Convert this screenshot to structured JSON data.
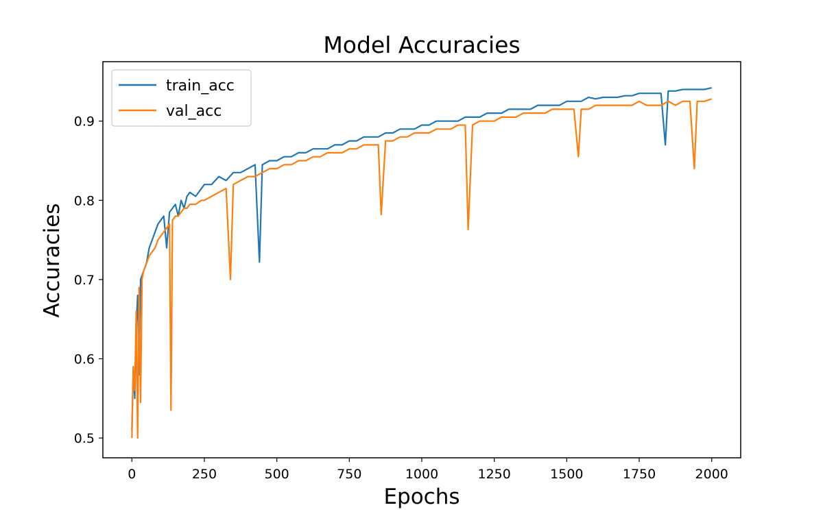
{
  "chart_data": {
    "type": "line",
    "title": "Model Accuracies",
    "xlabel": "Epochs",
    "ylabel": "Accuracies",
    "xlim": [
      -100,
      2100
    ],
    "ylim": [
      0.475,
      0.975
    ],
    "xticks": [
      0,
      250,
      500,
      750,
      1000,
      1250,
      1500,
      1750,
      2000
    ],
    "yticks": [
      0.5,
      0.6,
      0.7,
      0.8,
      0.9
    ],
    "grid": false,
    "legend": "upper-left",
    "series": [
      {
        "name": "train_acc",
        "color": "#1f77b4",
        "x": [
          0,
          5,
          10,
          15,
          20,
          25,
          30,
          40,
          50,
          60,
          70,
          80,
          90,
          100,
          110,
          120,
          130,
          140,
          150,
          160,
          170,
          180,
          190,
          200,
          220,
          240,
          250,
          275,
          300,
          325,
          350,
          375,
          400,
          425,
          440,
          450,
          475,
          500,
          525,
          550,
          575,
          600,
          625,
          650,
          675,
          700,
          725,
          750,
          775,
          800,
          825,
          850,
          875,
          900,
          925,
          950,
          975,
          1000,
          1025,
          1050,
          1075,
          1100,
          1125,
          1150,
          1175,
          1200,
          1225,
          1250,
          1275,
          1300,
          1325,
          1350,
          1375,
          1400,
          1425,
          1450,
          1475,
          1500,
          1525,
          1550,
          1575,
          1600,
          1625,
          1650,
          1675,
          1700,
          1725,
          1750,
          1775,
          1800,
          1825,
          1840,
          1850,
          1875,
          1900,
          1925,
          1950,
          1975,
          2000
        ],
        "values": [
          0.51,
          0.59,
          0.55,
          0.64,
          0.68,
          0.58,
          0.7,
          0.71,
          0.72,
          0.74,
          0.75,
          0.76,
          0.77,
          0.775,
          0.78,
          0.74,
          0.785,
          0.79,
          0.795,
          0.78,
          0.8,
          0.79,
          0.805,
          0.81,
          0.805,
          0.815,
          0.82,
          0.82,
          0.83,
          0.825,
          0.835,
          0.835,
          0.84,
          0.845,
          0.722,
          0.845,
          0.85,
          0.85,
          0.855,
          0.855,
          0.86,
          0.86,
          0.865,
          0.865,
          0.865,
          0.87,
          0.87,
          0.875,
          0.875,
          0.88,
          0.88,
          0.88,
          0.885,
          0.885,
          0.89,
          0.89,
          0.89,
          0.895,
          0.895,
          0.9,
          0.9,
          0.9,
          0.9,
          0.905,
          0.905,
          0.905,
          0.91,
          0.91,
          0.91,
          0.915,
          0.915,
          0.915,
          0.915,
          0.92,
          0.92,
          0.92,
          0.92,
          0.925,
          0.925,
          0.925,
          0.93,
          0.928,
          0.93,
          0.93,
          0.93,
          0.932,
          0.932,
          0.935,
          0.935,
          0.935,
          0.935,
          0.87,
          0.938,
          0.938,
          0.94,
          0.94,
          0.94,
          0.94,
          0.942
        ]
      },
      {
        "name": "val_acc",
        "color": "#ff7f0e",
        "x": [
          0,
          5,
          10,
          15,
          20,
          25,
          30,
          35,
          40,
          50,
          60,
          70,
          80,
          90,
          100,
          110,
          120,
          130,
          135,
          140,
          150,
          160,
          170,
          180,
          190,
          200,
          220,
          240,
          250,
          275,
          300,
          325,
          340,
          350,
          375,
          400,
          425,
          450,
          475,
          500,
          525,
          550,
          575,
          600,
          625,
          650,
          675,
          700,
          725,
          750,
          775,
          800,
          825,
          850,
          860,
          875,
          900,
          925,
          950,
          975,
          1000,
          1025,
          1050,
          1075,
          1100,
          1125,
          1150,
          1160,
          1175,
          1200,
          1225,
          1250,
          1275,
          1300,
          1325,
          1350,
          1375,
          1400,
          1425,
          1450,
          1475,
          1500,
          1525,
          1540,
          1550,
          1575,
          1600,
          1625,
          1650,
          1675,
          1700,
          1725,
          1750,
          1775,
          1800,
          1825,
          1850,
          1875,
          1900,
          1925,
          1940,
          1950,
          1975,
          2000
        ],
        "values": [
          0.5,
          0.59,
          0.56,
          0.66,
          0.5,
          0.69,
          0.545,
          0.7,
          0.71,
          0.72,
          0.73,
          0.735,
          0.74,
          0.75,
          0.755,
          0.76,
          0.765,
          0.77,
          0.535,
          0.775,
          0.78,
          0.78,
          0.785,
          0.79,
          0.79,
          0.795,
          0.795,
          0.8,
          0.8,
          0.805,
          0.81,
          0.815,
          0.7,
          0.82,
          0.825,
          0.83,
          0.83,
          0.835,
          0.84,
          0.84,
          0.845,
          0.845,
          0.85,
          0.85,
          0.855,
          0.855,
          0.86,
          0.86,
          0.86,
          0.865,
          0.865,
          0.87,
          0.87,
          0.87,
          0.782,
          0.875,
          0.875,
          0.88,
          0.88,
          0.885,
          0.885,
          0.885,
          0.89,
          0.89,
          0.89,
          0.895,
          0.895,
          0.763,
          0.895,
          0.9,
          0.9,
          0.9,
          0.905,
          0.905,
          0.905,
          0.91,
          0.91,
          0.91,
          0.91,
          0.915,
          0.915,
          0.915,
          0.915,
          0.855,
          0.915,
          0.915,
          0.92,
          0.92,
          0.92,
          0.92,
          0.92,
          0.92,
          0.925,
          0.92,
          0.92,
          0.92,
          0.925,
          0.92,
          0.925,
          0.925,
          0.84,
          0.925,
          0.925,
          0.928
        ]
      }
    ]
  }
}
